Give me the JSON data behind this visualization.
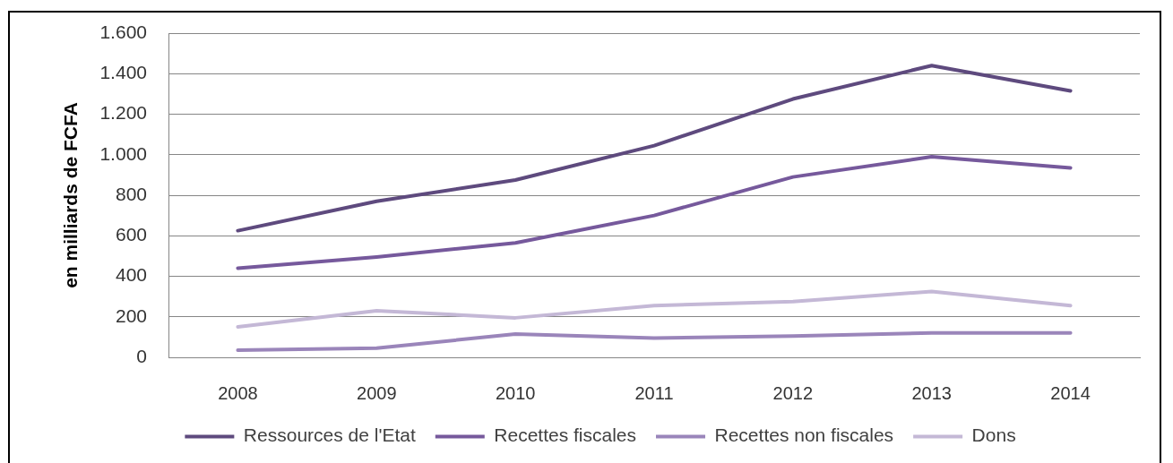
{
  "chart_data": {
    "type": "line",
    "ylabel": "en milliards de FCFA",
    "categories": [
      "2008",
      "2009",
      "2010",
      "2011",
      "2012",
      "2013",
      "2014"
    ],
    "series": [
      {
        "name": "Ressources de l'Etat",
        "color": "#5e4a7e",
        "values": [
          625,
          770,
          875,
          1045,
          1275,
          1440,
          1315
        ]
      },
      {
        "name": "Recettes fiscales",
        "color": "#76599c",
        "values": [
          440,
          495,
          565,
          700,
          890,
          990,
          935
        ]
      },
      {
        "name": "Recettes non fiscales",
        "color": "#9a85ba",
        "values": [
          35,
          45,
          115,
          95,
          105,
          120,
          120
        ]
      },
      {
        "name": "Dons",
        "color": "#c4b8d6",
        "values": [
          150,
          230,
          195,
          255,
          275,
          325,
          255
        ]
      }
    ],
    "ylim": [
      0,
      1600
    ],
    "yticks": [
      0,
      200,
      400,
      600,
      800,
      {
        "value": 1000,
        "label": "1.000"
      },
      {
        "value": 1200,
        "label": "1.200"
      },
      {
        "value": 1400,
        "label": "1.400"
      },
      {
        "value": 1600,
        "label": "1.600"
      }
    ],
    "grid": "y",
    "legend": "bottom",
    "marker": "none",
    "line_style": "solid"
  }
}
